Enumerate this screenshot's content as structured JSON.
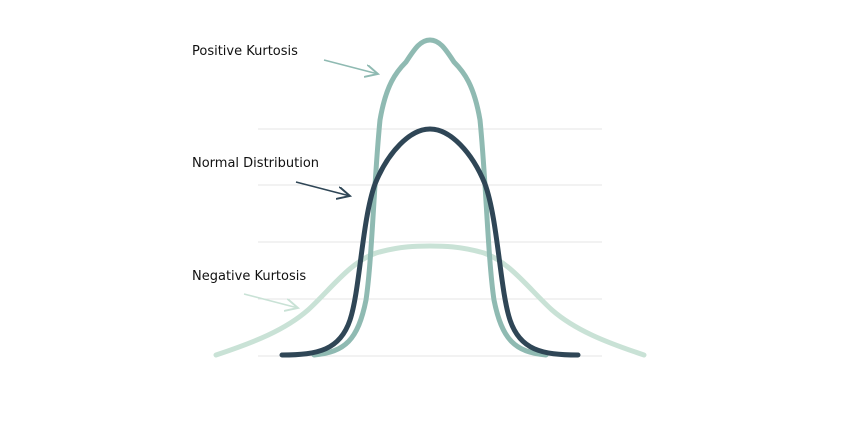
{
  "diagram": {
    "labels": {
      "positive": "Positive Kurtosis",
      "normal": "Normal Distribution",
      "negative": "Negative Kurtosis"
    },
    "colors": {
      "positive": "#8fbab2",
      "normal": "#2f4656",
      "negative": "#c9e2d6",
      "grid": "#e6e6e6",
      "text": "#111111"
    }
  }
}
